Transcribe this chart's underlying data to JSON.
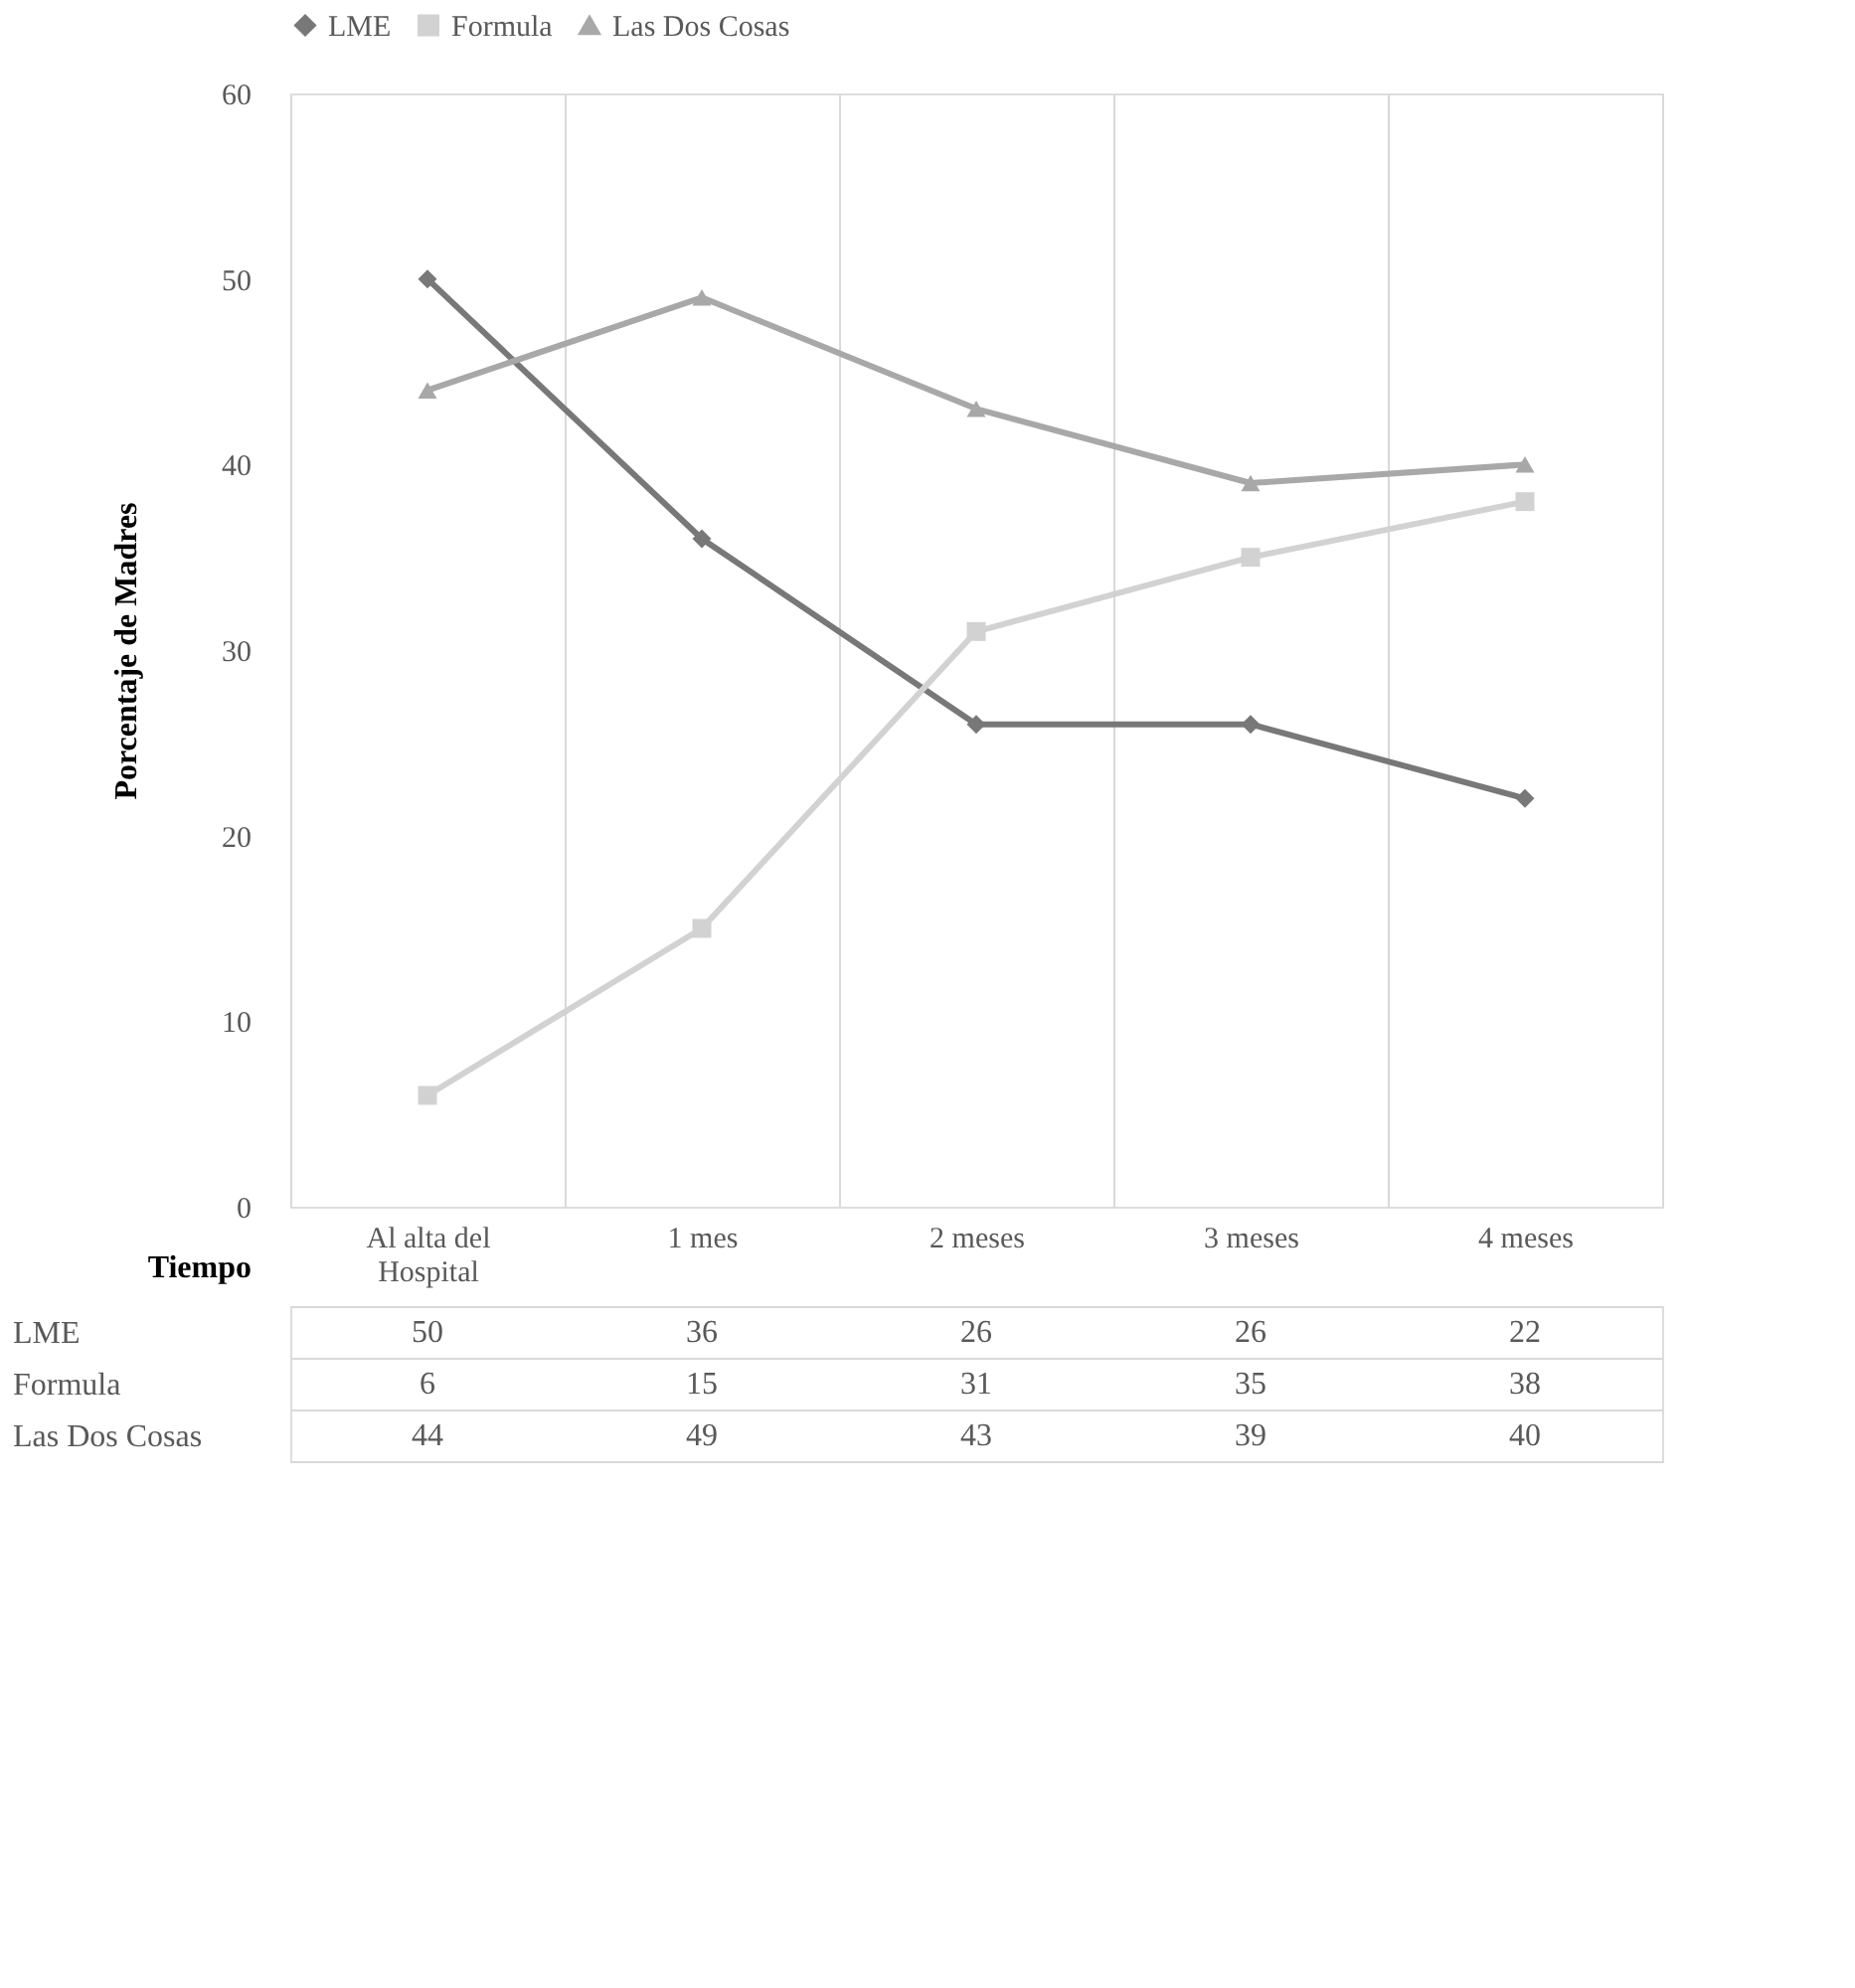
{
  "chart_data": {
    "type": "line",
    "ylabel": "Porcentaje de Madres",
    "xlabel": "Tiempo",
    "categories": [
      "Al alta del\nHospital",
      "1 mes",
      "2 meses",
      "3 meses",
      "4 meses"
    ],
    "series": [
      {
        "name": "LME",
        "color": "#787878",
        "marker": "diamond",
        "values": [
          50,
          36,
          26,
          26,
          22
        ]
      },
      {
        "name": "Formula",
        "color": "#d2d2d2",
        "marker": "square",
        "values": [
          6,
          15,
          31,
          35,
          38
        ]
      },
      {
        "name": "Las Dos Cosas",
        "color": "#a8a8a8",
        "marker": "triangle",
        "values": [
          44,
          49,
          43,
          39,
          40
        ]
      }
    ],
    "ylim": [
      0,
      60
    ],
    "yticks": [
      0,
      10,
      20,
      30,
      40,
      50,
      60
    ],
    "grid": "x",
    "legend": "top",
    "data_labels": true
  }
}
